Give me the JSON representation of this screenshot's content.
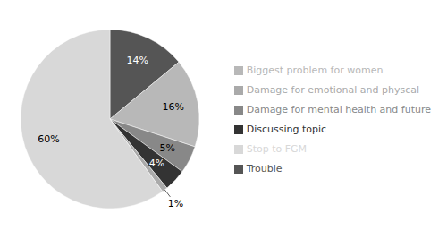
{
  "chart_data": {
    "type": "pie",
    "categories": [
      "Trouble",
      "Biggest problem for women",
      "Damage for mental health and future",
      "Discussing topic",
      "Damage for emotional and physcal",
      "Stop to FGM"
    ],
    "values": [
      14,
      16,
      5,
      4,
      1,
      60
    ],
    "value_labels": [
      "14%",
      "16%",
      "5%",
      "4%",
      "1%",
      "60%"
    ],
    "colors": [
      "#555555",
      "#b8b8b8",
      "#888888",
      "#333333",
      "#aaaaaa",
      "#d8d8d8"
    ],
    "data_labels": true,
    "legend": "right"
  }
}
